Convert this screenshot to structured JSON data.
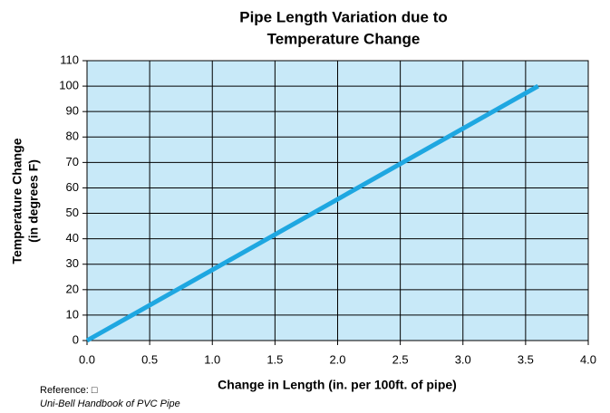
{
  "chart_data": {
    "type": "line",
    "title": [
      "Pipe Length Variation due to",
      "Temperature Change"
    ],
    "xlabel": "Change in Length (in. per 100ft. of pipe)",
    "ylabel": [
      "Temperature Change",
      "(in degrees F)"
    ],
    "x": [
      0,
      3.6
    ],
    "series": [
      {
        "name": "Temperature Change",
        "color": "#1ea7e1",
        "values": [
          0,
          100
        ]
      }
    ],
    "xlim": [
      0,
      4
    ],
    "xticks": [
      {
        "value": 0,
        "label": "0.0"
      },
      0.5,
      {
        "value": 1,
        "label": "1.0"
      },
      1.5,
      {
        "value": 2,
        "label": "2.0"
      },
      2.5,
      {
        "value": 3,
        "label": "3.0"
      },
      3.5,
      {
        "value": 4,
        "label": "4.0"
      }
    ],
    "ylim": [
      0,
      110
    ],
    "yticks": [
      0,
      10,
      20,
      30,
      40,
      50,
      60,
      70,
      80,
      90,
      100,
      110
    ],
    "grid": true,
    "background": "#c8e9f8",
    "reference": "Reference: □",
    "source": "Uni-Bell Handbook of PVC Pipe"
  }
}
